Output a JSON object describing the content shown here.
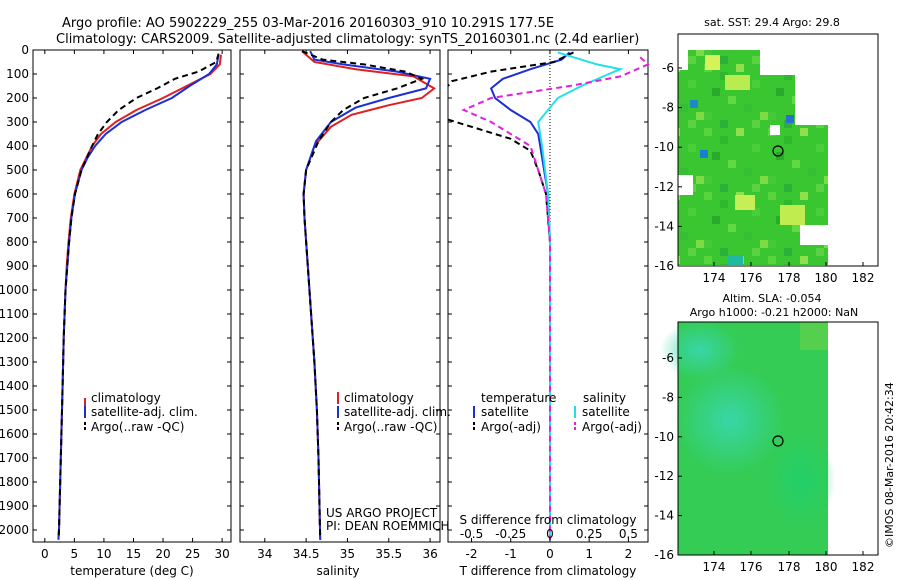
{
  "header": {
    "line1": "Argo profile: AO 5902229_255 03-Mar-2016 20160303_910 10.291S 177.5E",
    "line2": "Climatology: CARS2009. Satellite-adjusted climatology: synTS_20160301.nc (2.4d earlier)"
  },
  "depth_ticks": [
    0,
    100,
    200,
    300,
    400,
    500,
    600,
    700,
    800,
    900,
    1000,
    1100,
    1200,
    1300,
    1400,
    1500,
    1600,
    1700,
    1800,
    1900,
    2000
  ],
  "colors": {
    "climatology": "#e02020",
    "satellite": "#1a2fd6",
    "argo": "#000000",
    "sal_sat": "#22e0e8",
    "sal_argo": "#e020e0"
  },
  "chart_data": [
    {
      "id": "temperature",
      "type": "line",
      "xlabel": "temperature (deg C)",
      "xlim": [
        -2,
        31.5
      ],
      "xticks": [
        0,
        5,
        10,
        15,
        20,
        25,
        30
      ],
      "ylim": [
        0,
        2050
      ],
      "legend": [
        "climatology",
        "satellite-adj. clim.",
        "Argo(..raw -QC)"
      ],
      "series": [
        {
          "name": "climatology",
          "color": "#e02020",
          "dash": "",
          "points": [
            [
              29.8,
              20
            ],
            [
              29.6,
              60
            ],
            [
              28,
              100
            ],
            [
              24,
              150
            ],
            [
              20,
              200
            ],
            [
              15.5,
              250
            ],
            [
              12,
              300
            ],
            [
              9.5,
              350
            ],
            [
              8,
              400
            ],
            [
              7,
              450
            ],
            [
              6,
              500
            ],
            [
              5,
              600
            ],
            [
              4.4,
              700
            ],
            [
              4,
              800
            ],
            [
              3.7,
              900
            ],
            [
              3.5,
              1000
            ],
            [
              3.2,
              1200
            ],
            [
              3,
              1400
            ],
            [
              2.8,
              1600
            ],
            [
              2.6,
              1800
            ],
            [
              2.4,
              2000
            ],
            [
              2.3,
              2040
            ]
          ]
        },
        {
          "name": "satellite",
          "color": "#1a2fd6",
          "dash": "",
          "points": [
            [
              29.4,
              20
            ],
            [
              29.1,
              60
            ],
            [
              27.8,
              100
            ],
            [
              24.5,
              150
            ],
            [
              21.5,
              200
            ],
            [
              17,
              250
            ],
            [
              13,
              300
            ],
            [
              10.3,
              350
            ],
            [
              8.5,
              400
            ],
            [
              7.2,
              450
            ],
            [
              6.2,
              500
            ],
            [
              5.1,
              600
            ],
            [
              4.5,
              700
            ],
            [
              4.1,
              800
            ],
            [
              3.8,
              900
            ],
            [
              3.5,
              1000
            ],
            [
              3.2,
              1200
            ],
            [
              3,
              1400
            ],
            [
              2.8,
              1600
            ],
            [
              2.6,
              1800
            ],
            [
              2.4,
              2000
            ],
            [
              2.3,
              2040
            ]
          ]
        },
        {
          "name": "argo",
          "color": "#000000",
          "dash": "6,4",
          "points": [
            [
              29.4,
              15
            ],
            [
              29,
              50
            ],
            [
              26,
              90
            ],
            [
              22,
              120
            ],
            [
              19,
              160
            ],
            [
              15.5,
              200
            ],
            [
              12.5,
              250
            ],
            [
              10.5,
              300
            ],
            [
              9,
              350
            ],
            [
              8,
              400
            ],
            [
              7.1,
              450
            ],
            [
              6.2,
              500
            ],
            [
              5.1,
              600
            ],
            [
              4.5,
              700
            ],
            [
              4.1,
              800
            ],
            [
              3.8,
              900
            ],
            [
              3.5,
              1000
            ],
            [
              3.2,
              1200
            ],
            [
              3,
              1400
            ],
            [
              2.8,
              1600
            ],
            [
              2.6,
              1800
            ],
            [
              2.4,
              2000
            ],
            [
              2.3,
              2040
            ]
          ]
        }
      ]
    },
    {
      "id": "salinity",
      "type": "line",
      "xlabel": "salinity",
      "xlim": [
        33.7,
        36.12
      ],
      "xticks": [
        34,
        34.5,
        35,
        35.5,
        36
      ],
      "ylim": [
        0,
        2050
      ],
      "legend": [
        "climatology",
        "satellite-adj. clim.",
        "Argo(..raw -QC)"
      ],
      "series": [
        {
          "name": "climatology",
          "color": "#e02020",
          "dash": "",
          "points": [
            [
              34.45,
              5
            ],
            [
              34.6,
              50
            ],
            [
              35.1,
              80
            ],
            [
              35.8,
              110
            ],
            [
              36.05,
              160
            ],
            [
              35.9,
              200
            ],
            [
              35.5,
              230
            ],
            [
              35.05,
              270
            ],
            [
              34.8,
              320
            ],
            [
              34.6,
              400
            ],
            [
              34.5,
              500
            ],
            [
              34.47,
              600
            ],
            [
              34.48,
              700
            ],
            [
              34.52,
              900
            ],
            [
              34.56,
              1100
            ],
            [
              34.6,
              1300
            ],
            [
              34.63,
              1500
            ],
            [
              34.65,
              1700
            ],
            [
              34.67,
              2040
            ]
          ]
        },
        {
          "name": "satellite",
          "color": "#1a2fd6",
          "dash": "",
          "points": [
            [
              34.55,
              5
            ],
            [
              34.6,
              40
            ],
            [
              34.95,
              60
            ],
            [
              35.6,
              90
            ],
            [
              36.0,
              120
            ],
            [
              35.95,
              160
            ],
            [
              35.5,
              200
            ],
            [
              35.1,
              240
            ],
            [
              34.8,
              300
            ],
            [
              34.62,
              380
            ],
            [
              34.5,
              500
            ],
            [
              34.47,
              600
            ],
            [
              34.48,
              700
            ],
            [
              34.52,
              900
            ],
            [
              34.56,
              1100
            ],
            [
              34.6,
              1300
            ],
            [
              34.63,
              1500
            ],
            [
              34.65,
              1700
            ],
            [
              34.67,
              2040
            ]
          ]
        },
        {
          "name": "argo",
          "color": "#000000",
          "dash": "6,4",
          "points": [
            [
              34.45,
              5
            ],
            [
              34.7,
              40
            ],
            [
              35.2,
              60
            ],
            [
              35.7,
              90
            ],
            [
              35.9,
              120
            ],
            [
              35.6,
              160
            ],
            [
              35.2,
              200
            ],
            [
              34.95,
              250
            ],
            [
              34.8,
              300
            ],
            [
              34.65,
              380
            ],
            [
              34.5,
              500
            ],
            [
              34.47,
              600
            ],
            [
              34.48,
              700
            ],
            [
              34.52,
              900
            ],
            [
              34.56,
              1100
            ],
            [
              34.6,
              1300
            ],
            [
              34.63,
              1500
            ],
            [
              34.65,
              1700
            ],
            [
              34.67,
              2040
            ]
          ]
        }
      ]
    },
    {
      "id": "difference",
      "type": "line",
      "xlabel": "T difference from climatology",
      "top_label": "S difference from climatology",
      "xlim": [
        -2.6,
        2.5
      ],
      "xticks": [
        -2,
        -1,
        0,
        1,
        2
      ],
      "s_ticks": [
        "-0.5",
        "-0.25",
        "0",
        "0.25",
        "0.5"
      ],
      "s_tick_t": [
        -2,
        -1,
        0,
        1,
        2
      ],
      "ylim": [
        0,
        2050
      ],
      "legend_t_title": "temperature",
      "legend_s_title": "salinity",
      "legend": [
        "satellite",
        "Argo(-adj)",
        "satellite",
        "Argo(-adj)"
      ],
      "series": [
        {
          "name": "T satellite",
          "color": "#1a2fd6",
          "dash": "",
          "points": [
            [
              0.5,
              10
            ],
            [
              0.3,
              40
            ],
            [
              -0.5,
              80
            ],
            [
              -1.2,
              120
            ],
            [
              -1.5,
              160
            ],
            [
              -1.4,
              200
            ],
            [
              -1.0,
              250
            ],
            [
              -0.5,
              300
            ],
            [
              -0.3,
              350
            ],
            [
              -0.25,
              400
            ],
            [
              -0.15,
              500
            ],
            [
              -0.05,
              600
            ],
            [
              0,
              800
            ],
            [
              0,
              2040
            ]
          ]
        },
        {
          "name": "T argo",
          "color": "#000000",
          "dash": "6,4",
          "points": [
            [
              0.6,
              10
            ],
            [
              0.1,
              50
            ],
            [
              -1.5,
              90
            ],
            [
              -2.5,
              130
            ],
            [
              -2.6,
              150
            ]
          ]
        },
        {
          "name": "T argo lower",
          "color": "#000000",
          "dash": "6,4",
          "points": [
            [
              -2.6,
              290
            ],
            [
              -1.8,
              330
            ],
            [
              -1.0,
              370
            ],
            [
              -0.5,
              420
            ],
            [
              -0.3,
              500
            ],
            [
              -0.1,
              600
            ],
            [
              0,
              800
            ],
            [
              0,
              2040
            ]
          ]
        },
        {
          "name": "S satellite",
          "color": "#22e0e8",
          "dash": "",
          "points": [
            [
              0.2,
              10
            ],
            [
              1.2,
              60
            ],
            [
              1.8,
              80
            ],
            [
              1.5,
              100
            ],
            [
              0.8,
              150
            ],
            [
              0.2,
              200
            ],
            [
              -0.3,
              300
            ],
            [
              -0.2,
              400
            ],
            [
              -0.05,
              600
            ],
            [
              0,
              800
            ],
            [
              0,
              2040
            ]
          ]
        },
        {
          "name": "S argo",
          "color": "#e020e0",
          "dash": "6,4",
          "points": [
            [
              2.3,
              30
            ],
            [
              2.5,
              60
            ],
            [
              1.8,
              110
            ],
            [
              0.5,
              150
            ],
            [
              -1.5,
              200
            ],
            [
              -2.2,
              250
            ],
            [
              -1.5,
              300
            ],
            [
              -0.5,
              400
            ],
            [
              -0.1,
              600
            ],
            [
              0,
              800
            ],
            [
              0,
              2040
            ]
          ]
        }
      ]
    }
  ],
  "project": {
    "line1": "US ARGO PROJECT",
    "line2": "PI: DEAN ROEMMICH"
  },
  "map_sst": {
    "title": "sat. SST: 29.4  Argo: 29.8",
    "xticks": [
      "174",
      "176",
      "178",
      "180",
      "182"
    ],
    "yticks": [
      "-6",
      "-8",
      "-10",
      "-12",
      "-14",
      "-16"
    ]
  },
  "map_sla": {
    "title1": "Altim. SLA: -0.054",
    "title2": "Argo h1000: -0.21 h2000: NaN",
    "xticks": [
      "174",
      "176",
      "178",
      "180",
      "182"
    ],
    "yticks": [
      "-6",
      "-8",
      "-10",
      "-12",
      "-14",
      "-16"
    ]
  },
  "timestamp": "©IMOS 08-Mar-2016 20:42:34"
}
